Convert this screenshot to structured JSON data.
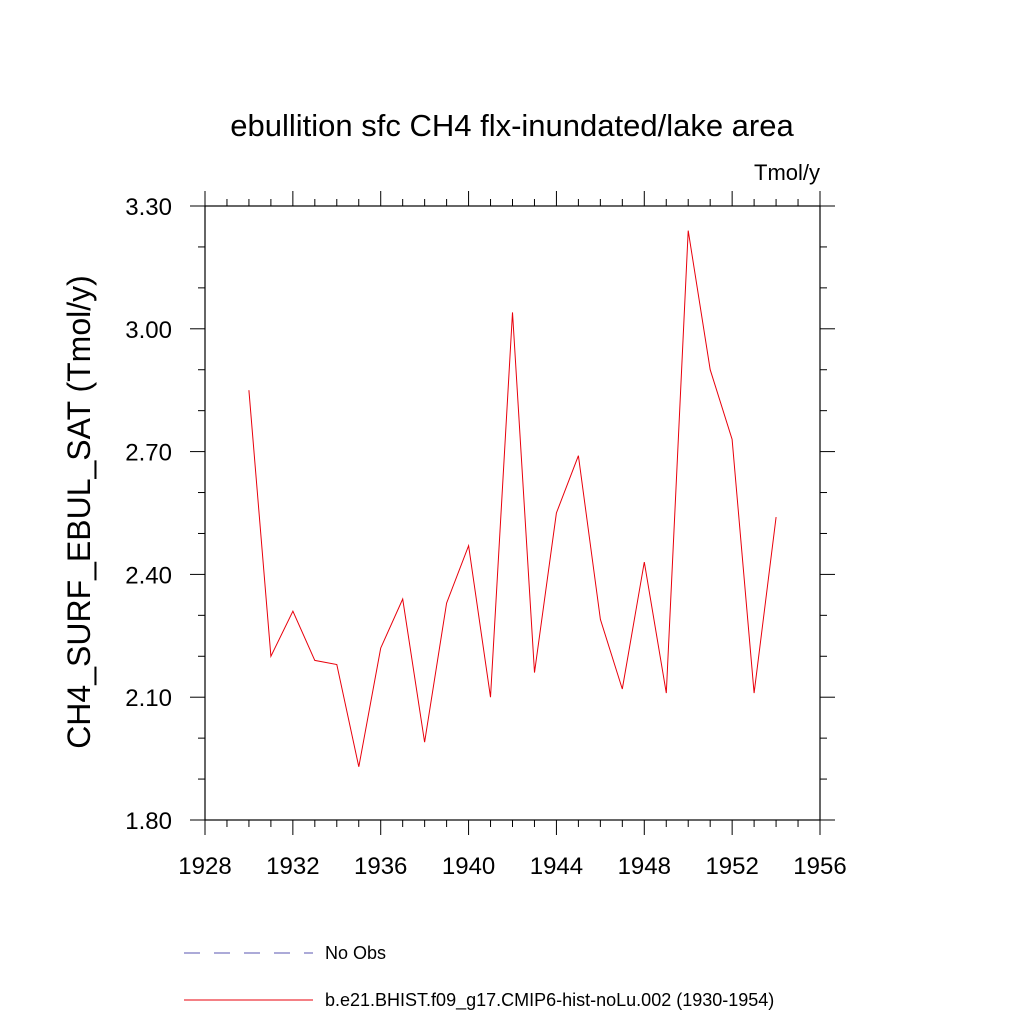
{
  "chart_data": {
    "type": "line",
    "title": "ebullition sfc CH4 flx-inundated/lake area",
    "units_label": "Tmol/y",
    "ylabel": "CH4_SURF_EBUL_SAT  (Tmol/y)",
    "xlabel": "",
    "xlim": [
      1928,
      1956
    ],
    "ylim": [
      1.8,
      3.3
    ],
    "x_ticks": [
      1928,
      1932,
      1936,
      1940,
      1944,
      1948,
      1952,
      1956
    ],
    "x_tick_labels": [
      "1928",
      "1932",
      "1936",
      "1940",
      "1944",
      "1948",
      "1952",
      "1956"
    ],
    "y_ticks": [
      1.8,
      2.1,
      2.4,
      2.7,
      3.0,
      3.3
    ],
    "y_tick_labels": [
      "1.80",
      "2.10",
      "2.40",
      "2.70",
      "3.00",
      "3.30"
    ],
    "grid": false,
    "legend_position": "bottom",
    "series": [
      {
        "name": "b.e21.BHIST.f09_g17.CMIP6-hist-noLu.002 (1930-1954)",
        "color": "#e8000b",
        "style": "solid",
        "x": [
          1930,
          1931,
          1932,
          1933,
          1934,
          1935,
          1936,
          1937,
          1938,
          1939,
          1940,
          1941,
          1942,
          1943,
          1944,
          1945,
          1946,
          1947,
          1948,
          1949,
          1950,
          1951,
          1952,
          1953,
          1954
        ],
        "y": [
          2.85,
          2.2,
          2.31,
          2.19,
          2.18,
          1.93,
          2.22,
          2.34,
          1.99,
          2.33,
          2.47,
          2.1,
          3.04,
          2.16,
          2.55,
          2.69,
          2.29,
          2.12,
          2.43,
          2.11,
          3.24,
          2.9,
          2.73,
          2.11,
          2.54
        ]
      }
    ],
    "legend": [
      {
        "label": "No Obs",
        "color": "#5a55b0",
        "style": "dashed"
      },
      {
        "label": "b.e21.BHIST.f09_g17.CMIP6-hist-noLu.002 (1930-1954)",
        "color": "#e8000b",
        "style": "solid"
      }
    ]
  }
}
